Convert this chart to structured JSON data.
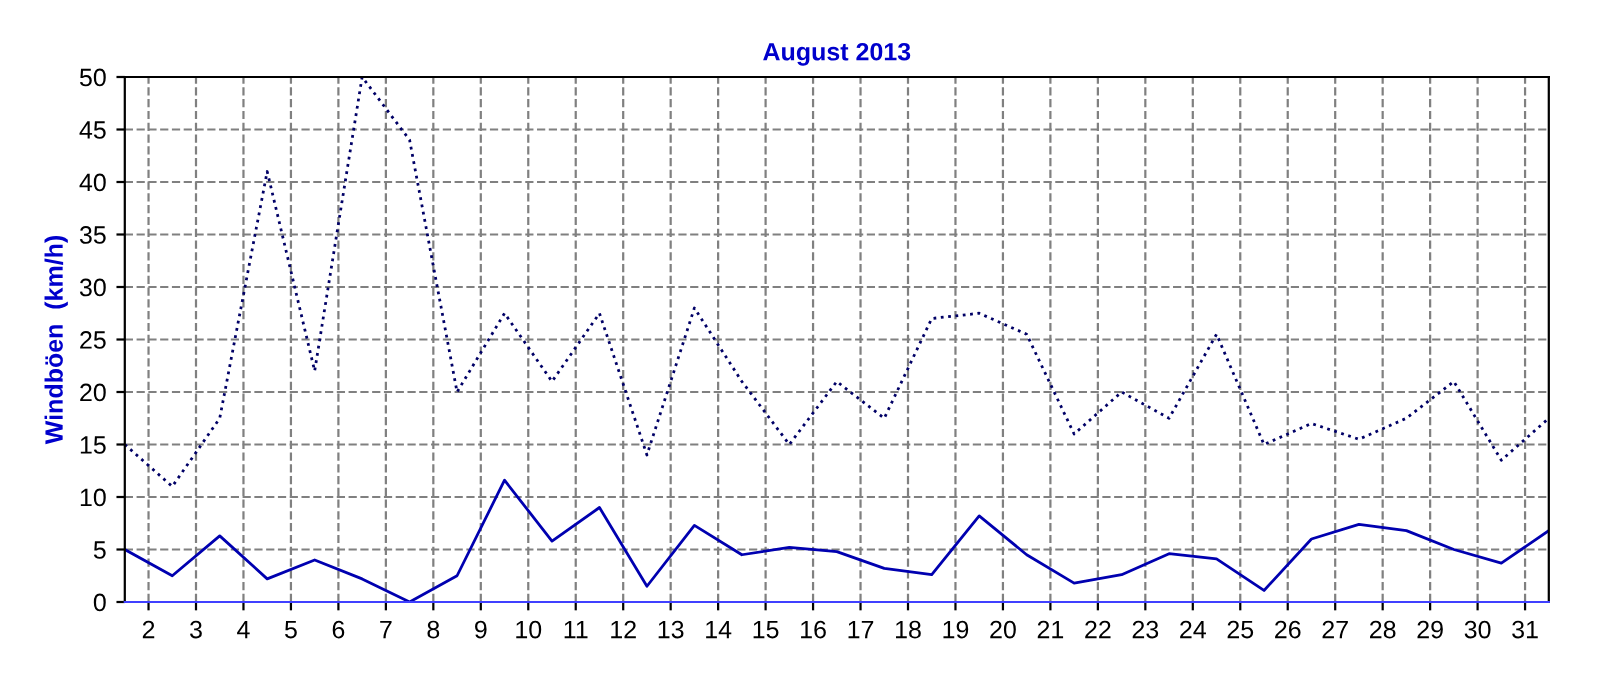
{
  "chart_data": {
    "type": "line",
    "title": "August 2013",
    "ylabel": "Windböen  (km/h)",
    "x": [
      1.5,
      2.5,
      3.5,
      4.5,
      5.5,
      6.5,
      7.5,
      8.5,
      9.5,
      10.5,
      11.5,
      12.5,
      13.5,
      14.5,
      15.5,
      16.5,
      17.5,
      18.5,
      19.5,
      20.5,
      21.5,
      22.5,
      23.5,
      24.5,
      25.5,
      26.5,
      27.5,
      28.5,
      29.5,
      30.5,
      31.5
    ],
    "series": [
      {
        "color": "#000066",
        "line_style": "dotted",
        "values": [
          15,
          11,
          17.5,
          41,
          22,
          50,
          44,
          20,
          27.5,
          21,
          27.5,
          14,
          28,
          21,
          15,
          21,
          17.5,
          27,
          27.5,
          25.5,
          16,
          20,
          17.5,
          25.5,
          15,
          17,
          15.5,
          17.5,
          21,
          13.5,
          17.5
        ]
      },
      {
        "color": "#0000b0",
        "line_style": "solid",
        "values": [
          5,
          2.5,
          6.3,
          2.2,
          4,
          2.2,
          0,
          2.5,
          11.6,
          5.8,
          9,
          1.5,
          7.3,
          4.5,
          5.2,
          4.8,
          3.2,
          2.6,
          8.2,
          4.5,
          1.8,
          2.6,
          4.6,
          4.1,
          1.1,
          6,
          7.4,
          6.8,
          5,
          3.7,
          6.8
        ]
      }
    ],
    "xlim": [
      1.5,
      31.5
    ],
    "xticks": [
      2,
      3,
      4,
      5,
      6,
      7,
      8,
      9,
      10,
      11,
      12,
      13,
      14,
      15,
      16,
      17,
      18,
      19,
      20,
      21,
      22,
      23,
      24,
      25,
      26,
      27,
      28,
      29,
      30,
      31
    ],
    "ylim": [
      0,
      50
    ],
    "yticks": [
      0,
      5,
      10,
      15,
      20,
      25,
      30,
      35,
      40,
      45,
      50
    ],
    "grid": true,
    "marker": "none"
  }
}
